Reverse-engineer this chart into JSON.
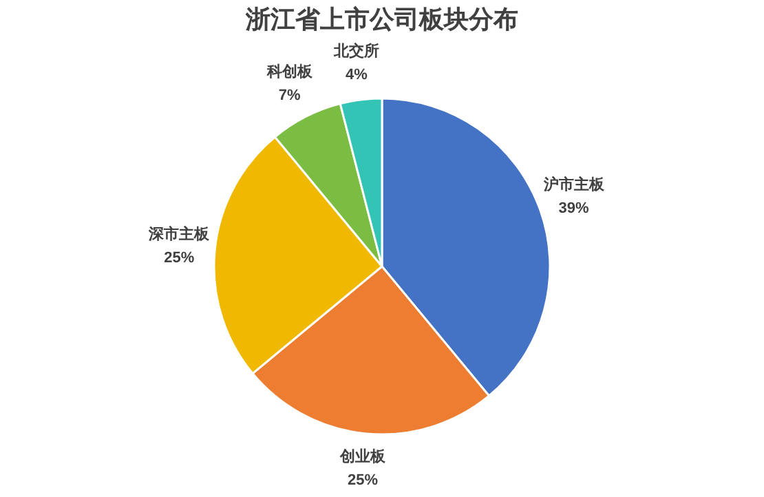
{
  "chart_data": {
    "type": "pie",
    "title": "浙江省上市公司板块分布",
    "categories": [
      "沪市主板",
      "创业板",
      "深市主板",
      "科创板",
      "北交所"
    ],
    "values": [
      39,
      25,
      25,
      7,
      4
    ],
    "colors": [
      "#4472c4",
      "#ed7d31",
      "#f0b900",
      "#7abd42",
      "#33c4b6"
    ],
    "value_labels": [
      "39%",
      "25%",
      "25%",
      "7%",
      "4%"
    ]
  }
}
